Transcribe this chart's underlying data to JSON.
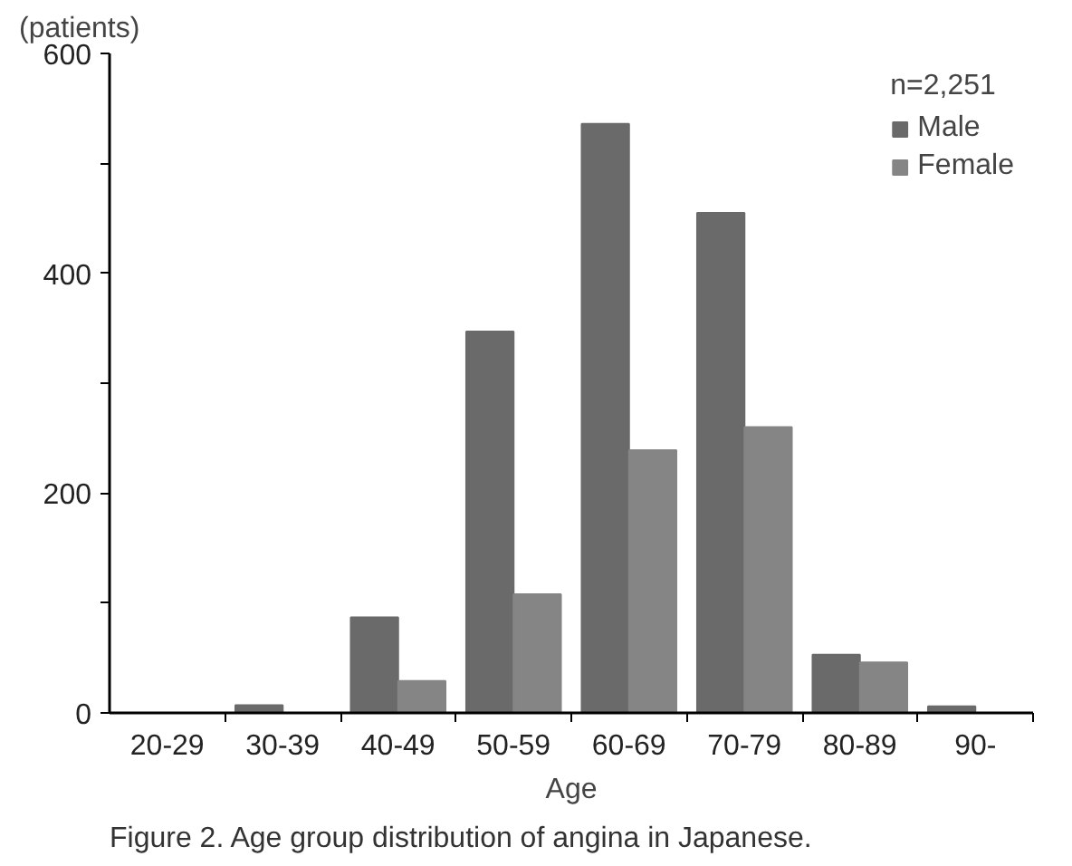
{
  "chart_data": {
    "type": "bar",
    "ylabel": "(patients)",
    "xlabel": "Age",
    "legend_title": "n=2,251",
    "categories": [
      "20-29",
      "30-39",
      "40-49",
      "50-59",
      "60-69",
      "70-79",
      "80-89",
      "90-"
    ],
    "series": [
      {
        "name": "Male",
        "color": "#6a6a6a",
        "values": [
          null,
          7,
          87,
          347,
          536,
          455,
          53,
          6
        ]
      },
      {
        "name": "Female",
        "color": "#858585",
        "values": [
          null,
          0,
          29,
          108,
          239,
          260,
          46,
          0
        ]
      }
    ],
    "ylim": [
      0,
      600
    ],
    "yticks": [
      0,
      200,
      400,
      600,
      {
        "value": 100,
        "label": null
      },
      {
        "value": 300,
        "label": null
      },
      {
        "value": 500,
        "label": null
      }
    ],
    "grid": false,
    "legend": "top right",
    "annotations": [
      "Figure 2.    Age group distribution of angina in Japanese."
    ]
  }
}
